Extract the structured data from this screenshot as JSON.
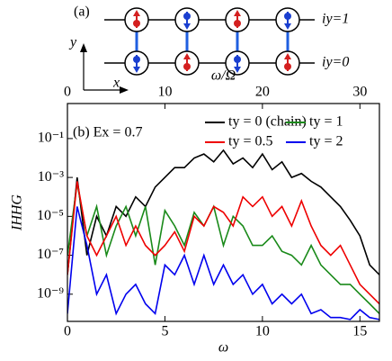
{
  "diagram": {
    "panel_label": "(a)",
    "y_axis": "y",
    "x_axis": "x",
    "row_top": "iy=1",
    "row_bottom": "iy=0"
  },
  "chart_data": {
    "type": "line",
    "annotation": "(b) Ex = 0.7",
    "xlabel": "ω",
    "x2label": "ω/Ω",
    "ylabel": "IHHG",
    "xlim": [
      0,
      16
    ],
    "xticks": [
      0,
      5,
      10,
      15
    ],
    "x2lim": [
      0,
      32
    ],
    "x2ticks": [
      0,
      10,
      20,
      30
    ],
    "ylim": [
      4e-11,
      6.3
    ],
    "log_y": true,
    "yticks": [
      {
        "value": 0.1,
        "label": "10⁻¹"
      },
      {
        "value": 0.001,
        "label": "10⁻³"
      },
      {
        "value": 1e-05,
        "label": "10⁻⁵"
      },
      {
        "value": 1e-07,
        "label": "10⁻⁷"
      },
      {
        "value": 1e-09,
        "label": "10⁻⁹"
      }
    ],
    "x": [
      0,
      0.5,
      1,
      1.5,
      2,
      2.5,
      3,
      3.5,
      4,
      4.5,
      5,
      5.5,
      6,
      6.5,
      7,
      7.5,
      8,
      8.5,
      9,
      9.5,
      10,
      10.5,
      11,
      11.5,
      12,
      12.5,
      13,
      13.5,
      14,
      14.5,
      15,
      15.5,
      16
    ],
    "series": [
      {
        "name": "ty = 0 (chain)",
        "color": "#000000",
        "values": [
          1e-08,
          0.001,
          1e-07,
          1e-05,
          1e-06,
          3.2e-05,
          1e-05,
          0.0001,
          3.2e-05,
          0.00032,
          0.001,
          0.0032,
          0.0032,
          0.01,
          0.016,
          0.0063,
          0.025,
          0.005,
          0.01,
          0.0032,
          0.016,
          0.0025,
          0.0063,
          0.001,
          0.0016,
          0.00063,
          0.00032,
          0.0001,
          3.2e-05,
          6.3e-06,
          1e-06,
          3.2e-08,
          1e-08
        ]
      },
      {
        "name": "ty = 1",
        "color": "#1a8a1a",
        "values": [
          1e-07,
          0.0005,
          1e-06,
          3.2e-05,
          1e-07,
          3.2e-06,
          3.2e-05,
          1e-06,
          3.2e-05,
          3.2e-08,
          2e-05,
          3.2e-06,
          3.2e-07,
          1.6e-05,
          3.2e-06,
          3.2e-05,
          3.2e-07,
          1e-05,
          3.2e-06,
          3.2e-07,
          3.2e-07,
          1e-06,
          1.6e-07,
          1e-07,
          3.2e-08,
          3.2e-07,
          3.2e-08,
          1e-08,
          3.2e-09,
          3.2e-09,
          1e-09,
          3.2e-10,
          1e-10
        ]
      },
      {
        "name": "ty = 0.5",
        "color": "#ee0000",
        "values": [
          1e-08,
          0.00063,
          1e-06,
          1e-07,
          1e-06,
          1e-05,
          3.2e-07,
          3.2e-06,
          3.2e-07,
          1e-07,
          3.2e-07,
          1.6e-06,
          1.6e-07,
          1e-05,
          3.2e-06,
          3.2e-05,
          1.6e-05,
          3.2e-06,
          0.0001,
          3.2e-05,
          0.0001,
          1e-05,
          3.2e-05,
          3.2e-06,
          6.3e-05,
          3.2e-06,
          3.2e-07,
          1e-07,
          3.2e-07,
          3.2e-08,
          3.2e-09,
          1e-09,
          3.2e-10
        ]
      },
      {
        "name": "ty = 2",
        "color": "#0000ee",
        "values": [
          1e-10,
          3.2e-05,
          3.2e-07,
          1e-09,
          1e-08,
          1e-10,
          1e-09,
          3.2e-09,
          3.2e-10,
          1e-10,
          3.2e-08,
          1e-08,
          1e-07,
          3.2e-09,
          1e-07,
          3.2e-09,
          3.2e-08,
          3.2e-09,
          1e-08,
          1e-09,
          3.2e-09,
          3.2e-10,
          1e-09,
          3.2e-10,
          1e-09,
          1e-10,
          1.6e-10,
          6.3e-11,
          6.3e-11,
          5e-11,
          1.6e-10,
          6.3e-11,
          5e-11
        ]
      }
    ]
  }
}
